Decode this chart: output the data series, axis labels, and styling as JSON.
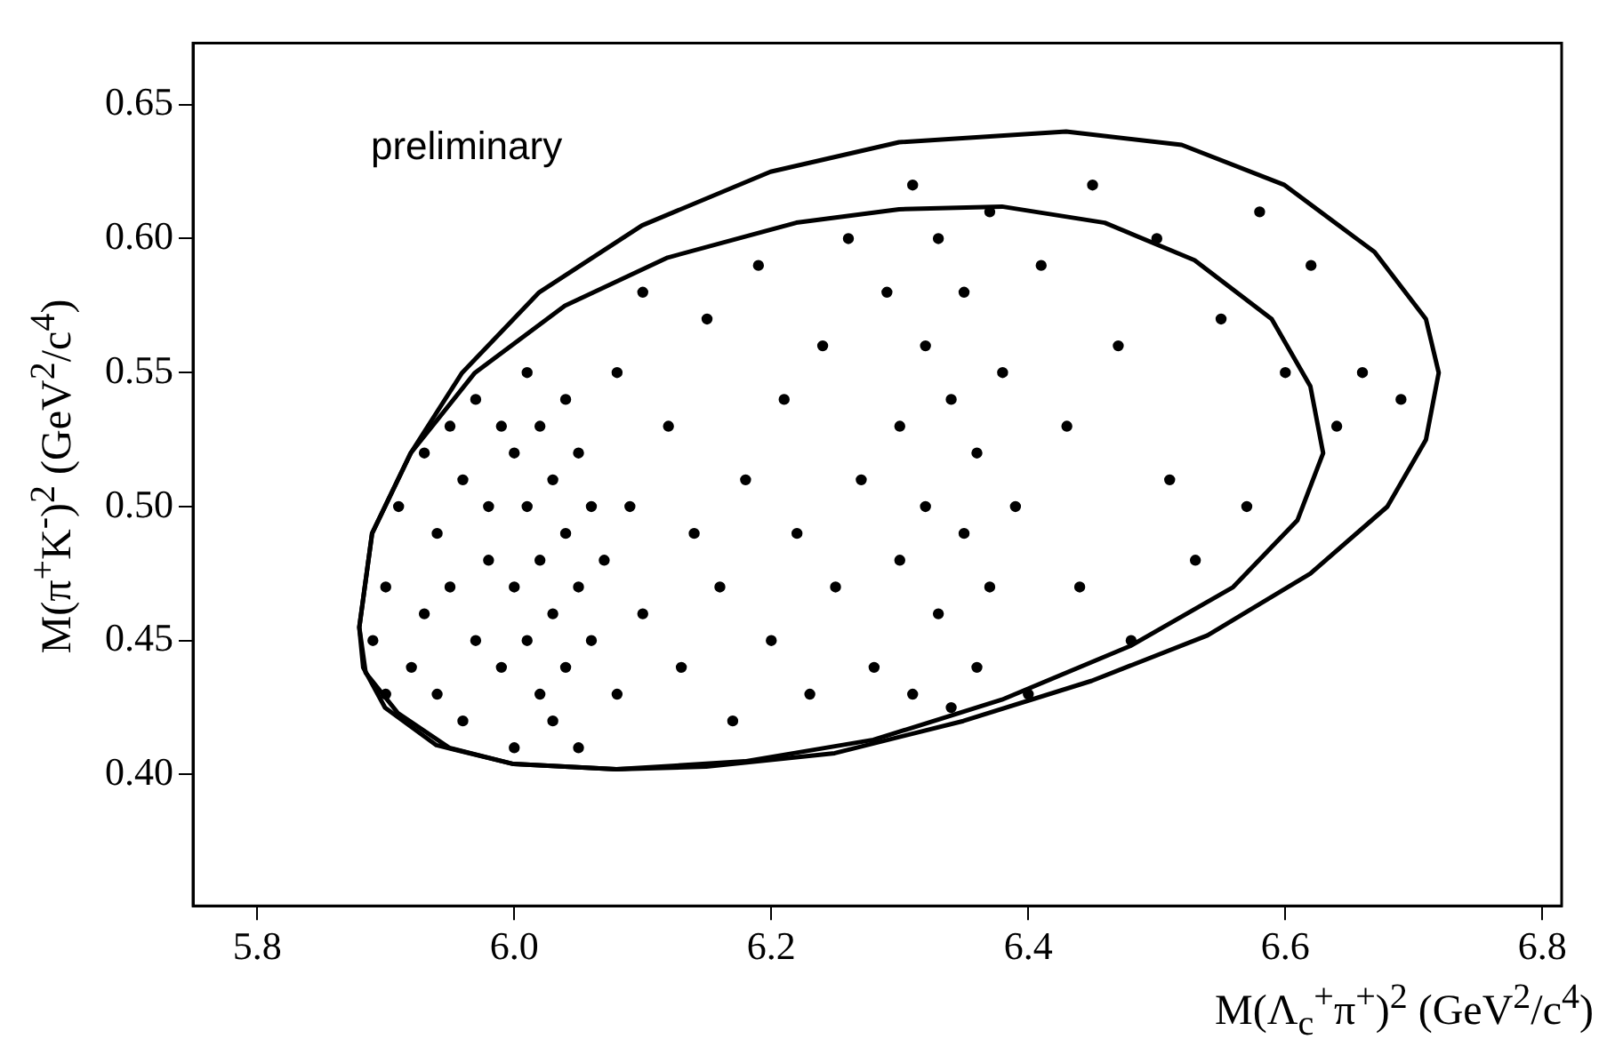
{
  "chart_data": {
    "type": "scatter",
    "xlabel": "M(Λ$_{c}$$^{+}$π$^{+}$)$^{2}$ (GeV$^{2}$/c$^{4}$)",
    "ylabel": "M(π$^{+}$K$^{-}$)$^{2}$ (GeV$^{2}$/c$^{4}$)",
    "annotations": [
      "preliminary"
    ],
    "xlim": [
      5.75,
      6.815
    ],
    "ylim": [
      0.351,
      0.673
    ],
    "xticks": [
      5.8,
      {
        "value": 6,
        "label": "6.0"
      },
      6.2,
      6.4,
      6.6,
      6.8
    ],
    "yticks": [
      {
        "value": 0.4,
        "label": "0.40"
      },
      0.45,
      {
        "value": 0.5,
        "label": "0.50"
      },
      0.55,
      {
        "value": 0.6,
        "label": "0.60"
      },
      0.65
    ],
    "grid": false,
    "legend": false,
    "marker": "circle",
    "series": [
      {
        "color": "#000000",
        "x": [
          5.89,
          5.9,
          5.9,
          5.91,
          5.92,
          5.93,
          5.93,
          5.94,
          5.94,
          5.95,
          5.95,
          5.96,
          5.96,
          5.97,
          5.97,
          5.98,
          5.98,
          5.99,
          5.99,
          6.0,
          6.0,
          6.0,
          6.01,
          6.01,
          6.01,
          6.02,
          6.02,
          6.02,
          6.03,
          6.03,
          6.03,
          6.04,
          6.04,
          6.04,
          6.05,
          6.05,
          6.05,
          6.06,
          6.06,
          6.07,
          6.08,
          6.08,
          6.09,
          6.1,
          6.1,
          6.12,
          6.13,
          6.14,
          6.15,
          6.16,
          6.17,
          6.18,
          6.19,
          6.2,
          6.21,
          6.22,
          6.23,
          6.24,
          6.25,
          6.26,
          6.27,
          6.28,
          6.29,
          6.3,
          6.3,
          6.31,
          6.31,
          6.32,
          6.32,
          6.33,
          6.33,
          6.34,
          6.34,
          6.35,
          6.35,
          6.36,
          6.36,
          6.37,
          6.37,
          6.38,
          6.39,
          6.4,
          6.41,
          6.43,
          6.44,
          6.45,
          6.47,
          6.48,
          6.5,
          6.51,
          6.53,
          6.55,
          6.57,
          6.58,
          6.6,
          6.62,
          6.64,
          6.66,
          6.69
        ],
        "values": [
          0.45,
          0.47,
          0.43,
          0.5,
          0.44,
          0.52,
          0.46,
          0.49,
          0.43,
          0.53,
          0.47,
          0.51,
          0.42,
          0.54,
          0.45,
          0.5,
          0.48,
          0.53,
          0.44,
          0.52,
          0.47,
          0.41,
          0.55,
          0.5,
          0.45,
          0.53,
          0.48,
          0.43,
          0.51,
          0.46,
          0.42,
          0.54,
          0.49,
          0.44,
          0.52,
          0.47,
          0.41,
          0.5,
          0.45,
          0.48,
          0.43,
          0.55,
          0.5,
          0.46,
          0.58,
          0.53,
          0.44,
          0.49,
          0.57,
          0.47,
          0.42,
          0.51,
          0.59,
          0.45,
          0.54,
          0.49,
          0.43,
          0.56,
          0.47,
          0.6,
          0.51,
          0.44,
          0.58,
          0.53,
          0.48,
          0.62,
          0.43,
          0.56,
          0.5,
          0.6,
          0.46,
          0.54,
          0.425,
          0.58,
          0.49,
          0.52,
          0.44,
          0.61,
          0.47,
          0.55,
          0.5,
          0.43,
          0.59,
          0.53,
          0.47,
          0.62,
          0.56,
          0.45,
          0.6,
          0.51,
          0.48,
          0.57,
          0.5,
          0.61,
          0.55,
          0.59,
          0.53,
          0.55,
          0.54
        ]
      }
    ]
  }
}
